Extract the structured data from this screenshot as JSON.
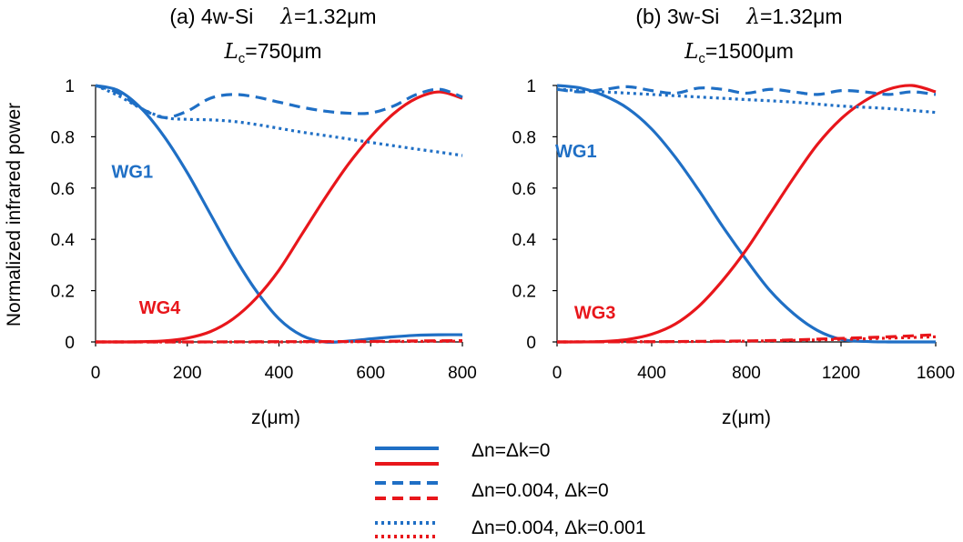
{
  "ylabel": "Normalized infrared power",
  "colors": {
    "blue": "#1F6FC5",
    "red": "#E8161B",
    "axis": "#000000"
  },
  "legend": [
    {
      "style": "solid",
      "label": "Δn=Δk=0"
    },
    {
      "style": "dashed",
      "label": "Δn=0.004, Δk=0"
    },
    {
      "style": "dotted",
      "label": "Δn=0.004, Δk=0.001"
    }
  ],
  "chart_data": [
    {
      "type": "line",
      "title_main": "(a) 4w-Si",
      "title_lambda_symbol": "λ",
      "title_lambda_value": "=1.32μm",
      "title_lc_symbol": "L",
      "title_lc_sub": "c",
      "title_lc_value": "=750μm",
      "xlabel": "z(μm)",
      "xlim": [
        0,
        800
      ],
      "ylim": [
        0,
        1
      ],
      "xticks": [
        0,
        200,
        400,
        600,
        800
      ],
      "yticks": [
        0,
        0.2,
        0.4,
        0.6,
        0.8,
        1
      ],
      "ytick_labels": [
        "0",
        "0.2",
        "0.4",
        "0.6",
        "0.8",
        "1"
      ],
      "annotations": [
        {
          "text": "WG1",
          "color": "blue",
          "x": 80,
          "y": 0.64
        },
        {
          "text": "WG4",
          "color": "red",
          "x": 140,
          "y": 0.11
        }
      ],
      "series": [
        {
          "name": "WG1 Δn=Δk=0",
          "color": "blue",
          "style": "solid",
          "x": [
            0,
            50,
            100,
            150,
            200,
            250,
            300,
            350,
            400,
            450,
            500,
            550,
            600,
            650,
            700,
            750,
            800
          ],
          "y": [
            1.0,
            0.98,
            0.91,
            0.8,
            0.66,
            0.5,
            0.34,
            0.2,
            0.09,
            0.025,
            0.0,
            0.003,
            0.012,
            0.02,
            0.026,
            0.028,
            0.028
          ]
        },
        {
          "name": "WG4 Δn=Δk=0",
          "color": "red",
          "style": "solid",
          "x": [
            0,
            50,
            100,
            150,
            200,
            250,
            300,
            350,
            400,
            450,
            500,
            550,
            600,
            650,
            700,
            750,
            800
          ],
          "y": [
            0.0,
            0.0,
            0.001,
            0.004,
            0.015,
            0.04,
            0.09,
            0.17,
            0.28,
            0.42,
            0.56,
            0.69,
            0.8,
            0.89,
            0.95,
            0.975,
            0.95
          ]
        },
        {
          "name": "WG1 Δn=0.004, Δk=0",
          "color": "blue",
          "style": "dashed",
          "x": [
            0,
            50,
            100,
            150,
            200,
            250,
            300,
            350,
            400,
            450,
            500,
            550,
            600,
            650,
            700,
            750,
            800
          ],
          "y": [
            1.0,
            0.97,
            0.91,
            0.875,
            0.9,
            0.95,
            0.965,
            0.955,
            0.935,
            0.915,
            0.9,
            0.892,
            0.893,
            0.92,
            0.965,
            0.985,
            0.955
          ]
        },
        {
          "name": "WG4 Δn=0.004, Δk=0",
          "color": "red",
          "style": "dashed",
          "x": [
            0,
            200,
            400,
            600,
            700,
            800
          ],
          "y": [
            0.0,
            0.0,
            0.001,
            0.002,
            0.004,
            0.005
          ]
        },
        {
          "name": "WG1 Δn=0.004, Δk=0.001",
          "color": "blue",
          "style": "dotted",
          "x": [
            0,
            50,
            100,
            150,
            200,
            250,
            300,
            350,
            400,
            450,
            500,
            550,
            600,
            650,
            700,
            750,
            800
          ],
          "y": [
            1.0,
            0.96,
            0.91,
            0.875,
            0.868,
            0.866,
            0.86,
            0.848,
            0.833,
            0.818,
            0.805,
            0.792,
            0.778,
            0.765,
            0.752,
            0.74,
            0.727
          ]
        },
        {
          "name": "WG4 Δn=0.004, Δk=0.001",
          "color": "red",
          "style": "dotted",
          "x": [
            0,
            400,
            800
          ],
          "y": [
            0.0,
            0.0,
            0.003
          ]
        }
      ]
    },
    {
      "type": "line",
      "title_main": "(b) 3w-Si",
      "title_lambda_symbol": "λ",
      "title_lambda_value": "=1.32μm",
      "title_lc_symbol": "L",
      "title_lc_sub": "c",
      "title_lc_value": "=1500μm",
      "xlabel": "z(μm)",
      "xlim": [
        0,
        1600
      ],
      "ylim": [
        0,
        1
      ],
      "xticks": [
        0,
        400,
        800,
        1200,
        1600
      ],
      "yticks": [
        0,
        0.2,
        0.4,
        0.6,
        0.8,
        1
      ],
      "ytick_labels": [
        "0",
        "0.2",
        "0.4",
        "0.6",
        "0.8",
        "1"
      ],
      "annotations": [
        {
          "text": "WG1",
          "color": "blue",
          "x": 80,
          "y": 0.72
        },
        {
          "text": "WG3",
          "color": "red",
          "x": 160,
          "y": 0.09
        }
      ],
      "series": [
        {
          "name": "WG1 Δn=Δk=0",
          "color": "blue",
          "style": "solid",
          "x": [
            0,
            100,
            200,
            300,
            400,
            500,
            600,
            700,
            800,
            900,
            1000,
            1100,
            1200,
            1300,
            1400,
            1500,
            1600
          ],
          "y": [
            1.0,
            0.99,
            0.96,
            0.91,
            0.83,
            0.72,
            0.59,
            0.45,
            0.32,
            0.2,
            0.11,
            0.045,
            0.01,
            0.002,
            0.0,
            0.0,
            0.0
          ]
        },
        {
          "name": "WG3 Δn=Δk=0",
          "color": "red",
          "style": "solid",
          "x": [
            0,
            100,
            200,
            300,
            400,
            500,
            600,
            700,
            800,
            900,
            1000,
            1100,
            1200,
            1300,
            1400,
            1500,
            1600
          ],
          "y": [
            0.0,
            0.0,
            0.002,
            0.01,
            0.03,
            0.07,
            0.14,
            0.24,
            0.36,
            0.5,
            0.64,
            0.77,
            0.87,
            0.94,
            0.985,
            1.0,
            0.975
          ]
        },
        {
          "name": "WG1 Δn=0.004, Δk=0",
          "color": "blue",
          "style": "dashed",
          "x": [
            0,
            100,
            200,
            300,
            400,
            500,
            600,
            700,
            800,
            900,
            1000,
            1100,
            1200,
            1300,
            1400,
            1500,
            1600
          ],
          "y": [
            0.985,
            0.975,
            0.985,
            0.995,
            0.98,
            0.97,
            0.99,
            0.985,
            0.97,
            0.985,
            0.975,
            0.965,
            0.98,
            0.975,
            0.965,
            0.975,
            0.965
          ]
        },
        {
          "name": "WG3 Δn=0.004, Δk=0",
          "color": "red",
          "style": "dashed",
          "x": [
            0,
            400,
            800,
            1000,
            1200,
            1400,
            1600
          ],
          "y": [
            0.0,
            0.001,
            0.004,
            0.008,
            0.014,
            0.02,
            0.028
          ]
        },
        {
          "name": "WG1 Δn=0.004, Δk=0.001",
          "color": "blue",
          "style": "dotted",
          "x": [
            0,
            200,
            400,
            600,
            800,
            1000,
            1200,
            1400,
            1600
          ],
          "y": [
            0.985,
            0.975,
            0.965,
            0.955,
            0.945,
            0.935,
            0.92,
            0.91,
            0.895
          ]
        },
        {
          "name": "WG3 Δn=0.004, Δk=0.001",
          "color": "red",
          "style": "dotted",
          "x": [
            0,
            400,
            800,
            1200,
            1600
          ],
          "y": [
            0.0,
            0.001,
            0.003,
            0.01,
            0.02
          ]
        }
      ]
    }
  ]
}
